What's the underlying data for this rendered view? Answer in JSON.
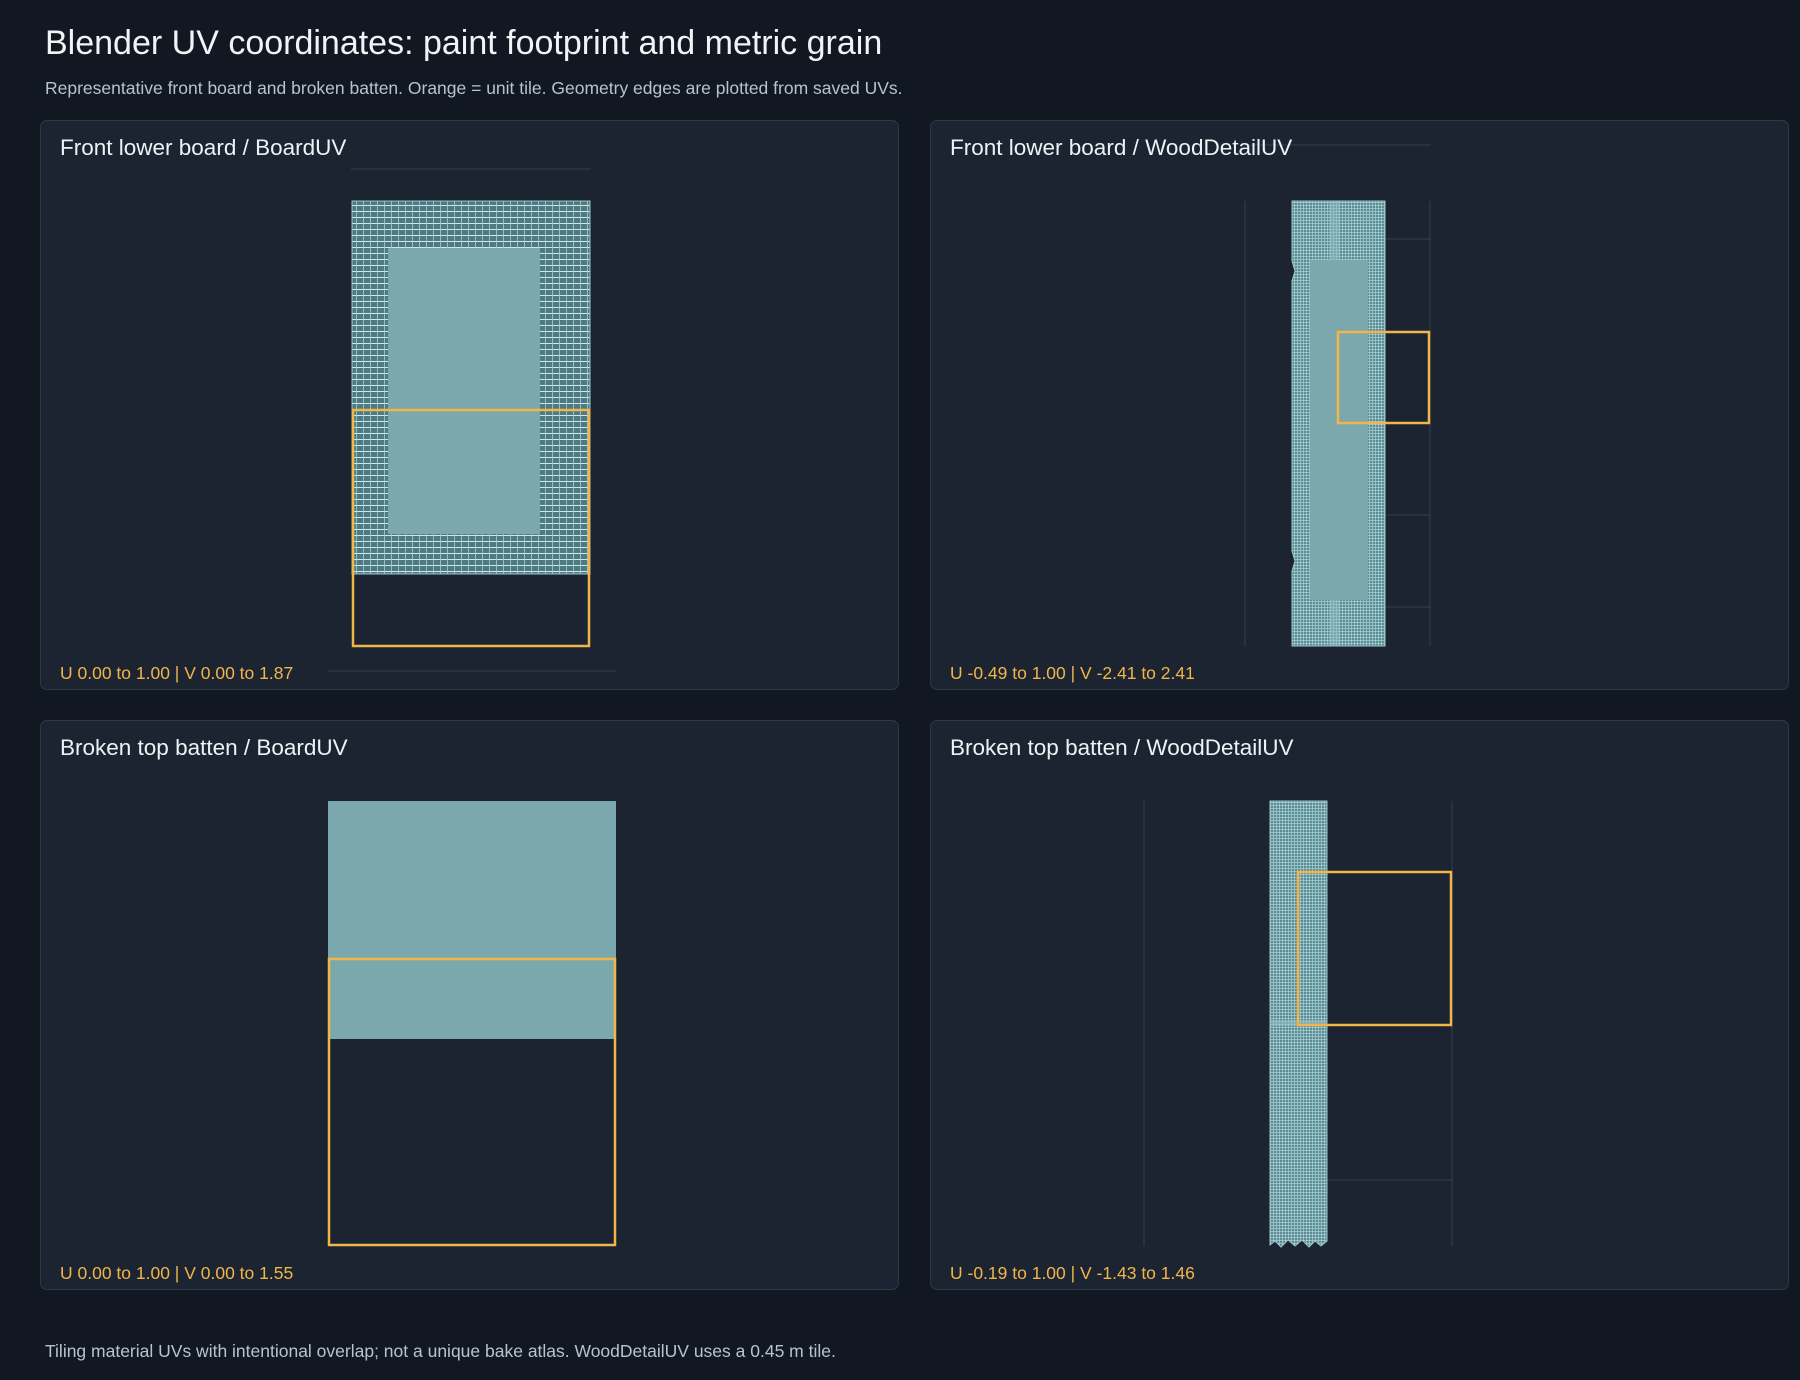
{
  "header": {
    "title": "Blender UV coordinates: paint footprint and metric grain",
    "subtitle": "Representative front board and broken batten. Orange = unit tile. Geometry edges are plotted from saved UVs."
  },
  "panels": [
    {
      "title": "Front lower board / BoardUV",
      "range_label": "U 0.00 to 1.00  |  V 0.00 to 1.87",
      "u_range": [
        0.0,
        1.0
      ],
      "v_range": [
        0.0,
        1.87
      ],
      "grid_pattern": "dense-border"
    },
    {
      "title": "Front lower board / WoodDetailUV",
      "range_label": "U -0.49 to 1.00  |  V -2.41 to 2.41",
      "u_range": [
        -0.49,
        1.0
      ],
      "v_range": [
        -2.41,
        2.41
      ],
      "grid_pattern": "fine-strip"
    },
    {
      "title": "Broken top batten / BoardUV",
      "range_label": "U 0.00 to 1.00  |  V 0.00 to 1.55",
      "u_range": [
        0.0,
        1.0
      ],
      "v_range": [
        0.0,
        1.55
      ],
      "grid_pattern": "solid-block"
    },
    {
      "title": "Broken top batten / WoodDetailUV",
      "range_label": "U -0.19 to 1.00  |  V -1.43 to 1.46",
      "u_range": [
        -0.19,
        1.0
      ],
      "v_range": [
        -1.43,
        1.46
      ],
      "grid_pattern": "fine-strip-broken"
    }
  ],
  "footer": {
    "note": "Tiling material UVs with intentional overlap; not a unique bake atlas. WoodDetailUV uses a 0.45 m tile."
  },
  "colors": {
    "background": "#111821",
    "panel": "#1b2430",
    "uv_fill": "#7aa8ad",
    "uv_edge": "#c9e6ea",
    "unit_tile": "#f2b54a",
    "guide": "#334152"
  }
}
